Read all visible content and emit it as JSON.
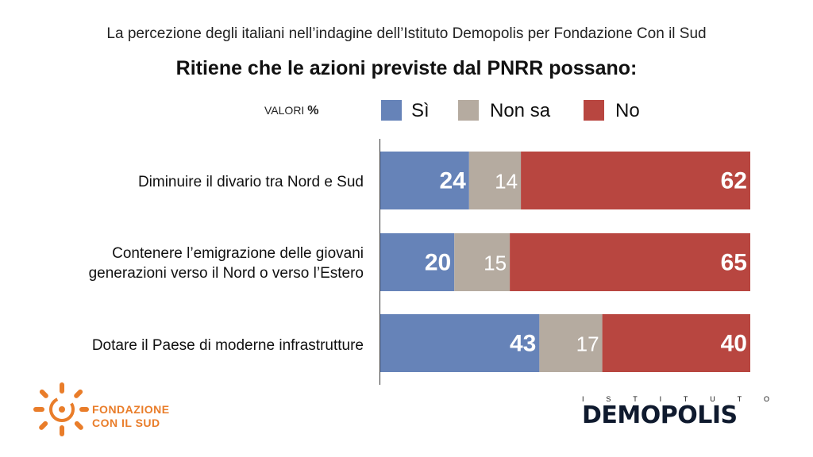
{
  "header": {
    "subtitle": "La percezione degli italiani nell’indagine dell’Istituto Demopolis per Fondazione Con il Sud",
    "title": "Ritiene che le azioni previste dal PNRR possano:"
  },
  "values_label": {
    "prefix": "VALORI",
    "unit": "%"
  },
  "legend": [
    {
      "label": "Sì",
      "color": "#6683b8"
    },
    {
      "label": "Non sa",
      "color": "#b5aba0"
    },
    {
      "label": "No",
      "color": "#b84640"
    }
  ],
  "chart_data": {
    "type": "bar",
    "orientation": "horizontal",
    "stacked": true,
    "categories": [
      "Diminuire il divario tra Nord e Sud",
      "Contenere l’emigrazione delle giovani\ngenerazioni verso il Nord o verso l’Estero",
      "Dotare il Paese di moderne infrastrutture"
    ],
    "series": [
      {
        "name": "Sì",
        "values": [
          24,
          20,
          43
        ],
        "color": "#6683b8",
        "label_color": "#ffffff"
      },
      {
        "name": "Non sa",
        "values": [
          14,
          15,
          17
        ],
        "color": "#b5aba0",
        "label_color": "#ffffff"
      },
      {
        "name": "No",
        "values": [
          62,
          65,
          40
        ],
        "color": "#b84640",
        "label_color": "#ffffff"
      }
    ],
    "xlim": [
      0,
      100
    ]
  },
  "logos": {
    "fondazione": {
      "line1": "FONDAZIONE",
      "line2": "CON IL SUD",
      "color": "#e97d2a"
    },
    "demopolis": {
      "top": [
        "I",
        "S",
        "T",
        "I",
        "T",
        "U",
        "T",
        "O"
      ],
      "main": "DEMOPOLIS"
    }
  }
}
